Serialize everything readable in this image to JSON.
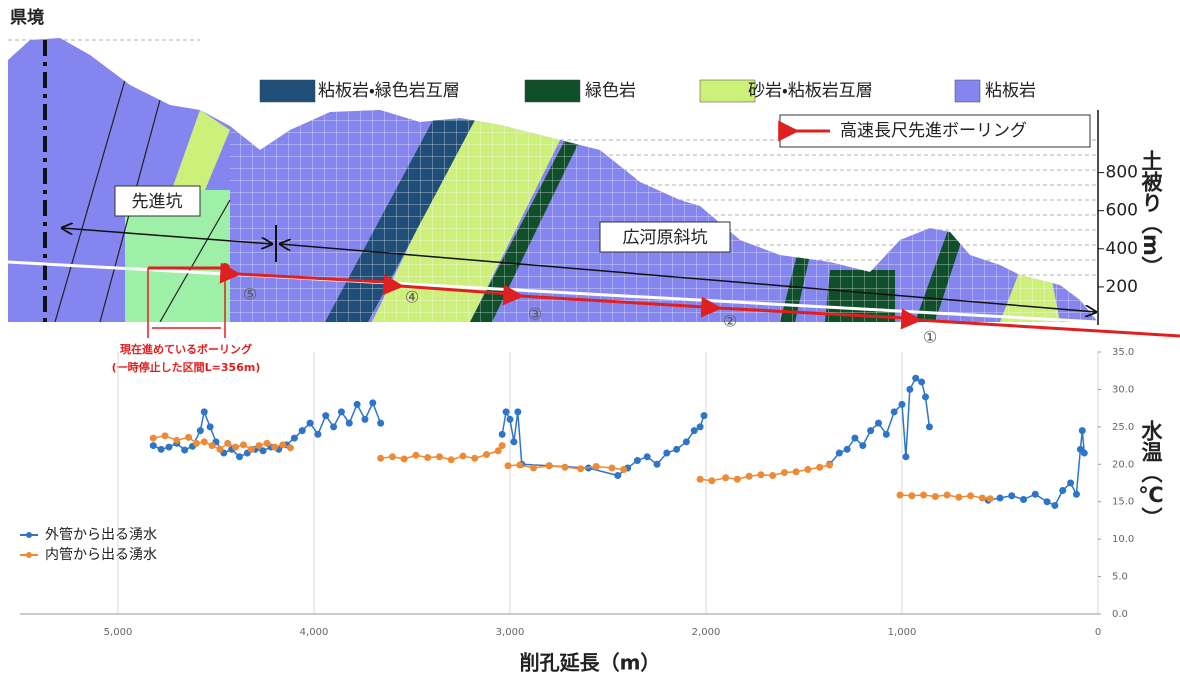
{
  "section": {
    "border_label": "県境",
    "legend": [
      {
        "name": "粘板岩・緑色岩互層",
        "color": "#1f4e79"
      },
      {
        "name": "緑色岩",
        "color": "#0f4f2a"
      },
      {
        "name": "砂岩・粘板岩互層",
        "color": "#ccf07a"
      },
      {
        "name": "粘板岩",
        "color": "#8585f0"
      }
    ],
    "boring_legend": "高速長尺先進ボーリング",
    "pilot_label": "先進坑",
    "incline_label": "広河原斜坑",
    "cover_title": "土被り（m）",
    "cover_ticks": [
      800,
      600,
      400,
      200
    ],
    "stages": [
      "①",
      "②",
      "③",
      "④",
      "⑤"
    ],
    "current_boring": "現在進めているボーリング",
    "paused_section": "(一時停止した区間L=356m)"
  },
  "chart_data": {
    "type": "line",
    "xlabel": "削孔延長（m）",
    "ylabel": "水温（℃）",
    "xlim": [
      5500,
      0
    ],
    "xticks": [
      {
        "value": 5000,
        "label": "5,000"
      },
      {
        "value": 4000,
        "label": "4,000"
      },
      {
        "value": 3000,
        "label": "3,000"
      },
      {
        "value": 2000,
        "label": "2,000"
      },
      {
        "value": 1000,
        "label": "1,000"
      },
      0
    ],
    "ylim": [
      0,
      35
    ],
    "yticks": [
      {
        "value": 0,
        "label": "0.0"
      },
      {
        "value": 5,
        "label": "5.0"
      },
      {
        "value": 10,
        "label": "10.0"
      },
      {
        "value": 15,
        "label": "15.0"
      },
      {
        "value": 20,
        "label": "20.0"
      },
      {
        "value": 25,
        "label": "25.0"
      },
      {
        "value": 30,
        "label": "30.0"
      },
      {
        "value": 35,
        "label": "35.0"
      }
    ],
    "grid": true,
    "legend": "left",
    "series": [
      {
        "name": "外管から出る湧水",
        "color": "#2e75c8",
        "x": [
          4820,
          4780,
          4740,
          4700,
          4660,
          4620,
          4580,
          4560,
          4530,
          4500,
          4460,
          4420,
          4380,
          4340,
          4300,
          4260,
          4220,
          4180,
          4140,
          4100,
          4060,
          4020,
          3980,
          3940,
          3900,
          3860,
          3820,
          3780,
          3740,
          3700,
          3660,
          3400,
          3040,
          3020,
          3000,
          2980,
          2960,
          2940,
          2800,
          2600,
          2450,
          2400,
          2350,
          2300,
          2250,
          2200,
          2150,
          2100,
          2060,
          2030,
          2010,
          1700,
          1370,
          1320,
          1280,
          1240,
          1200,
          1160,
          1120,
          1080,
          1040,
          1000,
          980,
          960,
          930,
          900,
          880,
          860,
          700,
          560,
          500,
          440,
          380,
          320,
          260,
          220,
          180,
          140,
          110,
          90,
          80,
          70
        ],
        "values": [
          22.5,
          22.0,
          22.3,
          22.8,
          21.9,
          22.4,
          24.5,
          27.0,
          25.0,
          23.0,
          21.5,
          22.0,
          21.0,
          21.5,
          22.0,
          21.8,
          22.3,
          22.0,
          22.6,
          23.5,
          24.5,
          25.5,
          24.0,
          26.5,
          25.0,
          27.0,
          25.5,
          28.0,
          26.0,
          28.2,
          25.5,
          null,
          24.0,
          27.0,
          26.0,
          23.0,
          27.0,
          20.0,
          19.8,
          19.5,
          18.5,
          19.5,
          20.5,
          21.0,
          20.0,
          21.5,
          22.0,
          23.0,
          24.5,
          25.0,
          26.5,
          null,
          20.0,
          21.5,
          22.0,
          23.5,
          22.5,
          24.5,
          25.5,
          24.0,
          27.0,
          28.0,
          21.0,
          30.0,
          31.5,
          31.0,
          29.0,
          25.0,
          null,
          15.2,
          15.5,
          15.8,
          15.3,
          16.0,
          15.0,
          14.5,
          16.5,
          17.5,
          16.0,
          22.0,
          24.5,
          21.5
        ]
      },
      {
        "name": "内管から出る湧水",
        "color": "#ed8a35",
        "x": [
          4820,
          4760,
          4700,
          4640,
          4600,
          4560,
          4520,
          4480,
          4440,
          4400,
          4360,
          4320,
          4280,
          4240,
          4200,
          4160,
          4120,
          3900,
          3660,
          3600,
          3540,
          3480,
          3420,
          3360,
          3300,
          3240,
          3180,
          3120,
          3060,
          3040,
          3030,
          3010,
          2950,
          2880,
          2800,
          2720,
          2640,
          2560,
          2480,
          2420,
          2200,
          2030,
          1970,
          1900,
          1840,
          1780,
          1720,
          1660,
          1600,
          1540,
          1480,
          1420,
          1370,
          1200,
          1010,
          950,
          890,
          830,
          770,
          710,
          650,
          590,
          550
        ],
        "values": [
          23.5,
          23.8,
          23.2,
          23.6,
          22.8,
          23.0,
          22.5,
          22.0,
          22.8,
          22.3,
          22.6,
          22.0,
          22.5,
          22.8,
          22.3,
          22.6,
          22.2,
          null,
          20.8,
          21.0,
          20.7,
          21.2,
          20.9,
          21.0,
          20.6,
          21.1,
          20.8,
          21.3,
          21.8,
          22.5,
          null,
          19.8,
          19.9,
          19.5,
          19.8,
          19.6,
          19.4,
          19.7,
          19.5,
          19.3,
          null,
          18.0,
          17.8,
          18.2,
          18.0,
          18.4,
          18.6,
          18.5,
          18.9,
          19.0,
          19.3,
          19.6,
          19.9,
          null,
          15.9,
          15.8,
          15.9,
          15.7,
          15.9,
          15.6,
          15.8,
          15.5,
          15.4
        ]
      }
    ]
  }
}
